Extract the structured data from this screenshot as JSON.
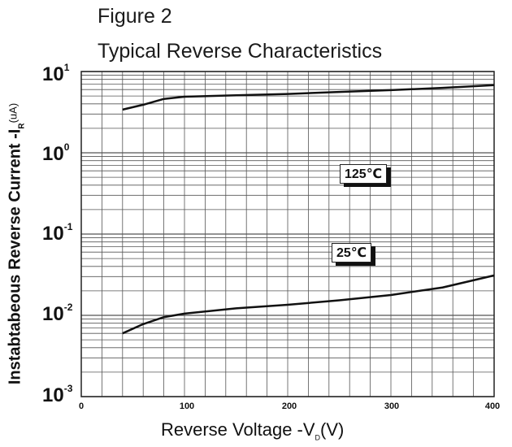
{
  "figure_label": "Figure 2",
  "chart_data": {
    "type": "line",
    "title": "Typical Reverse Characteristics",
    "xlabel": {
      "prefix": "Reverse  Voltage -V",
      "sub": "D",
      "suffix": "(V)"
    },
    "ylabel": {
      "prefix": "Instabtabeous Reverse Current -I",
      "sub": "R",
      "unit": "(uA)"
    },
    "xlim": [
      0,
      400
    ],
    "ylim": [
      0.001,
      10
    ],
    "yscale": "log",
    "grid": true,
    "x_ticks": [
      "0",
      "100",
      "200",
      "300",
      "400"
    ],
    "y_ticks": [
      {
        "base": "10",
        "exp": "1"
      },
      {
        "base": "10",
        "exp": "0"
      },
      {
        "base": "10",
        "exp": "-1"
      },
      {
        "base": "10",
        "exp": "-2"
      },
      {
        "base": "10",
        "exp": "-3"
      }
    ],
    "series": [
      {
        "name": "125℃",
        "x": [
          40,
          60,
          80,
          100,
          150,
          200,
          250,
          300,
          350,
          400
        ],
        "y": [
          3.4,
          3.9,
          4.6,
          4.9,
          5.1,
          5.3,
          5.6,
          5.9,
          6.3,
          6.8
        ]
      },
      {
        "name": "25℃",
        "x": [
          40,
          60,
          80,
          100,
          150,
          200,
          250,
          300,
          350,
          400
        ],
        "y": [
          0.006,
          0.0078,
          0.0095,
          0.0105,
          0.0122,
          0.0135,
          0.0153,
          0.0178,
          0.022,
          0.031
        ]
      }
    ],
    "annotations": [
      "125℃",
      "25℃"
    ]
  }
}
